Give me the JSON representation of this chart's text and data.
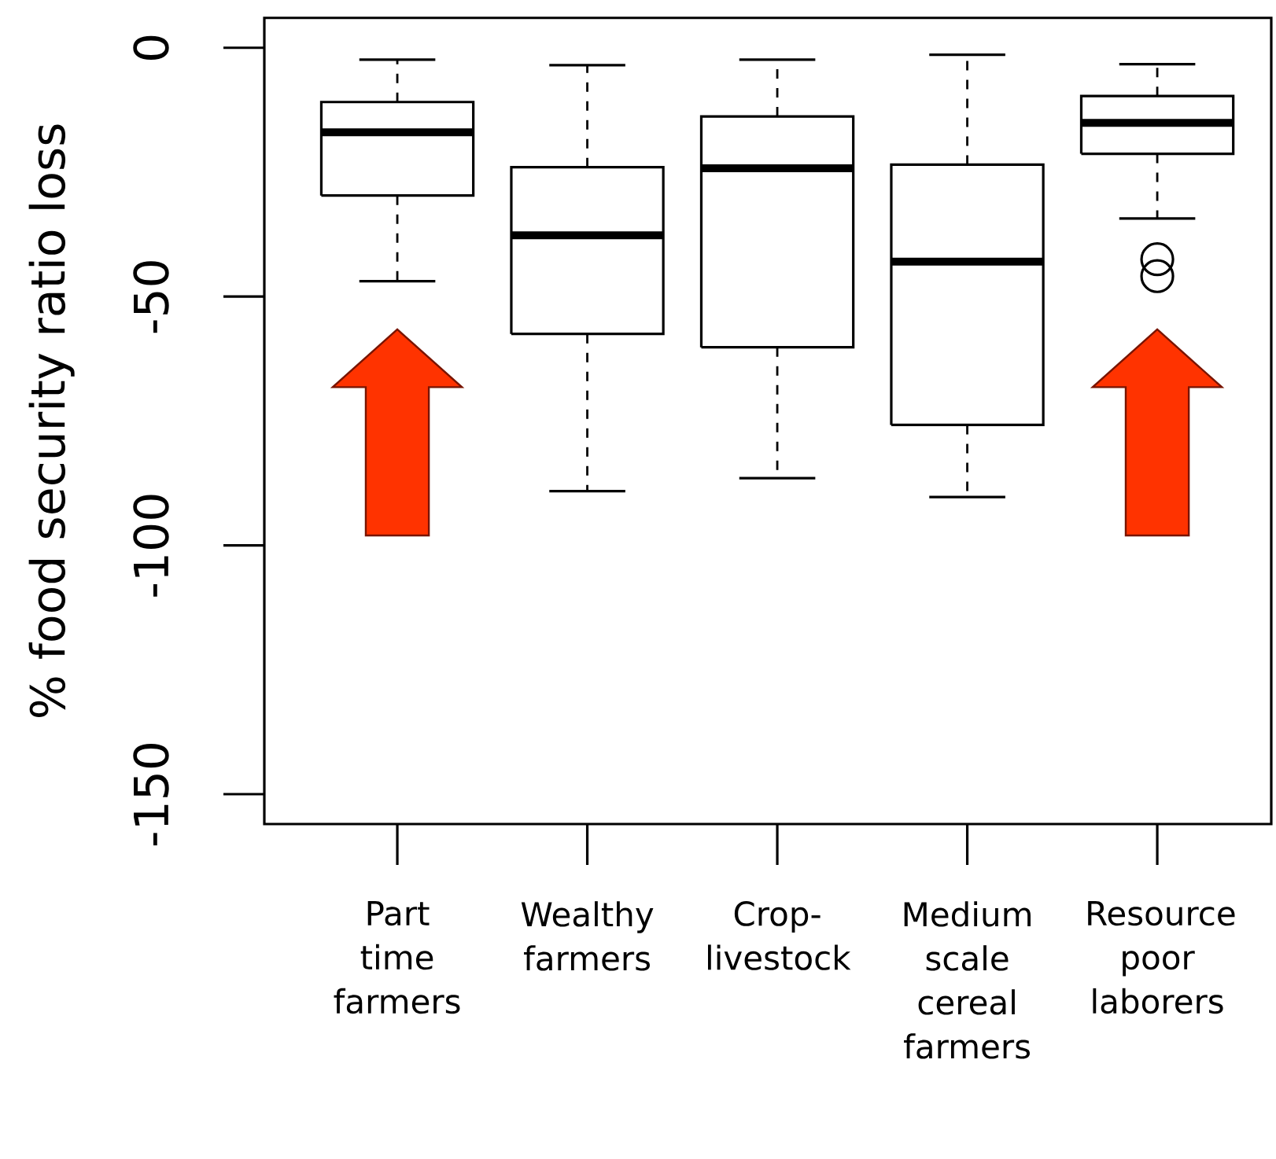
{
  "chart_data": {
    "type": "box",
    "ylabel": "% food security ratio loss",
    "categories": [
      "Part time farmers",
      "Wealthy farmers",
      "Crop-livestock",
      "Medium scale cereal farmers",
      "Resource poor laborers"
    ],
    "boxes": [
      {
        "low": -46.9,
        "q1": -29.7,
        "median": -17,
        "q3": -10.9,
        "high": -2.4
      },
      {
        "low": -89.1,
        "q1": -57.5,
        "median": -37.7,
        "q3": -24,
        "high": -3.5
      },
      {
        "low": -86.5,
        "q1": -60.2,
        "median": -24.2,
        "q3": -13.8,
        "high": -2.4
      },
      {
        "low": -90.3,
        "q1": -75.8,
        "median": -43,
        "q3": -23.5,
        "high": -1.4
      },
      {
        "low": -34.3,
        "q1": -21.3,
        "median": -15.1,
        "q3": -9.7,
        "high": -3.3,
        "outliers": [
          -42.5,
          -45.9
        ]
      }
    ],
    "ylim": [
      -156,
      6
    ],
    "yticks": [
      -150,
      -100,
      -50,
      0
    ]
  }
}
